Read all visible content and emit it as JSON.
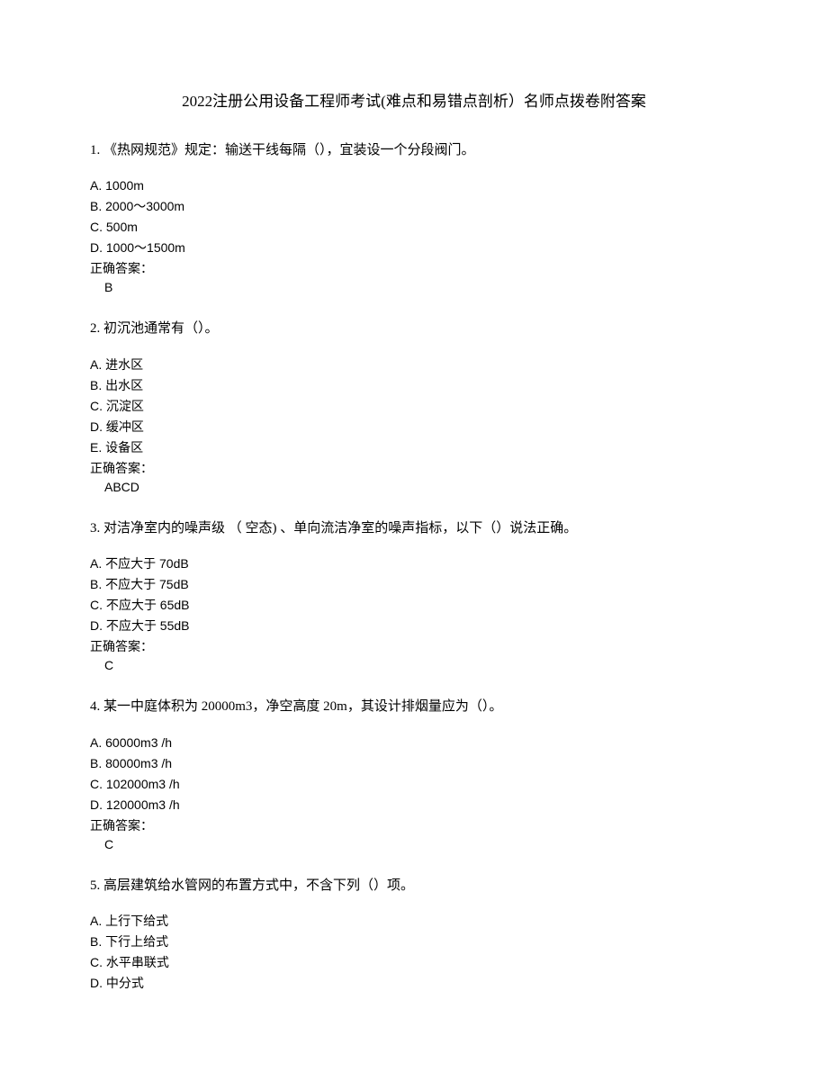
{
  "title": "2022注册公用设备工程师考试(难点和易错点剖析）名师点拨卷附答案",
  "questions": [
    {
      "number": "1. ",
      "text": "《热网规范》规定：输送干线每隔（），宜装设一个分段阀门。",
      "options": [
        "A. 1000m",
        "B. 2000～3000m",
        "C. 500m",
        "D. 1000～1500m"
      ],
      "answer_label": "正确答案：",
      "answer": "B"
    },
    {
      "number": "2. ",
      "text": "初沉池通常有（）。",
      "options": [
        "A. 进水区",
        "B. 出水区",
        "C. 沉淀区",
        "D. 缓冲区",
        "E. 设备区"
      ],
      "answer_label": "正确答案：",
      "answer": "ABCD"
    },
    {
      "number": "3. ",
      "text": "对洁净室内的噪声级 （ 空态) 、单向流洁净室的噪声指标，以下（）说法正确。",
      "options": [
        "A. 不应大于 70dB",
        "B. 不应大于 75dB",
        "C. 不应大于 65dB",
        "D. 不应大于 55dB"
      ],
      "answer_label": "正确答案：",
      "answer": "C"
    },
    {
      "number": "4. ",
      "text": "某一中庭体积为 20000m3，净空高度 20m，其设计排烟量应为（）。",
      "options": [
        "A. 60000m3 /h",
        "B. 80000m3 /h",
        "C. 102000m3 /h",
        "D. 120000m3 /h"
      ],
      "answer_label": "正确答案：",
      "answer": "C"
    },
    {
      "number": "5. ",
      "text": "高层建筑给水管网的布置方式中，不含下列（）项。",
      "options": [
        "A. 上行下给式",
        "B. 下行上给式",
        "C. 水平串联式",
        "D. 中分式"
      ],
      "answer_label": "",
      "answer": ""
    }
  ]
}
